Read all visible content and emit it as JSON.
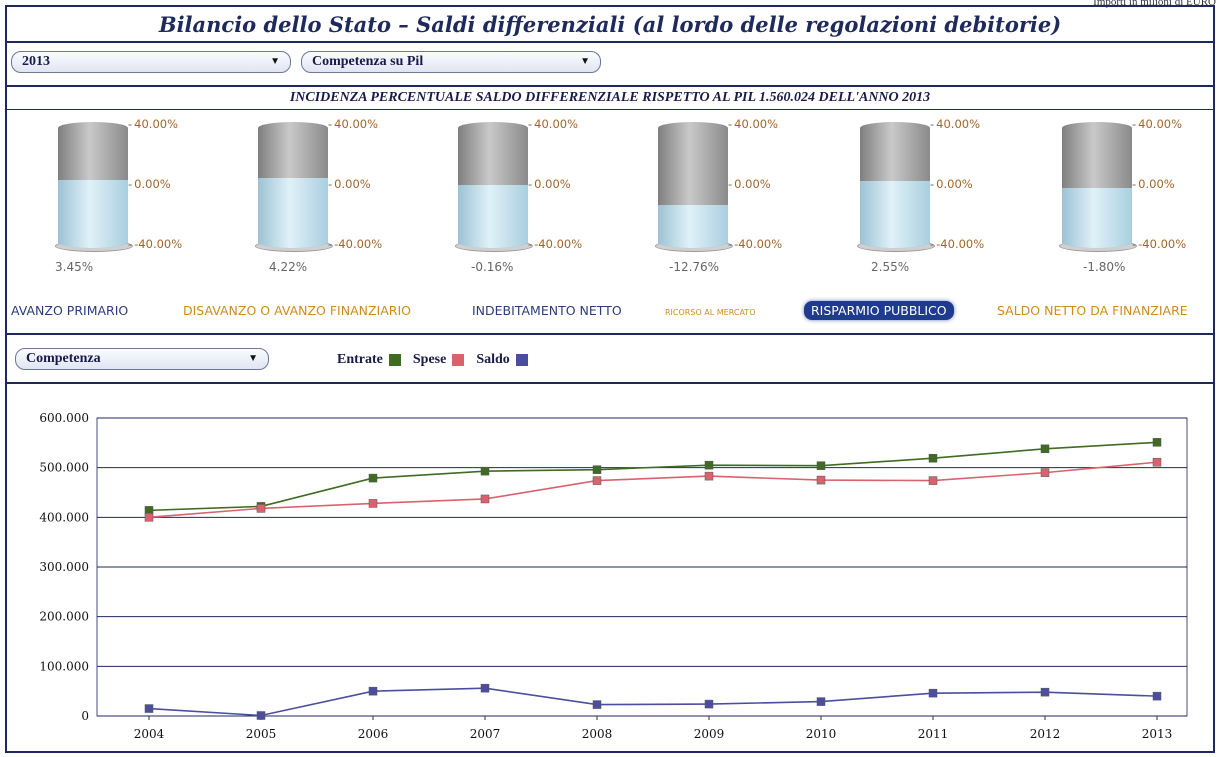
{
  "corner_note": "Importi in milioni di EURO",
  "title": "Bilancio dello Stato – Saldi differenziali (al lordo delle regolazioni debitorie)",
  "selectors": {
    "year": "2013",
    "measure": "Competenza su Pil",
    "mode": "Competenza"
  },
  "subtitle": "INCIDENZA PERCENTUALE SALDO DIFFERENZIALE RISPETTO AL PIL 1.560.024 DELL'ANNO 2013",
  "gauges": {
    "ticks": [
      "40.00%",
      "0.00%",
      "-40.00%"
    ],
    "range": [
      -40,
      40
    ],
    "items": [
      {
        "value_label": "3.45%",
        "value": 3.45
      },
      {
        "value_label": "4.22%",
        "value": 4.22
      },
      {
        "value_label": "-0.16%",
        "value": -0.16
      },
      {
        "value_label": "-12.76%",
        "value": -12.76
      },
      {
        "value_label": "2.55%",
        "value": 2.55
      },
      {
        "value_label": "-1.80%",
        "value": -1.8
      }
    ]
  },
  "links": [
    {
      "label": "AVANZO PRIMARIO"
    },
    {
      "label": "DISAVANZO O AVANZO FINANZIARIO"
    },
    {
      "label": "INDEBITAMENTO NETTO"
    },
    {
      "label": "RICORSO AL MERCATO"
    },
    {
      "label": "RISPARMIO PUBBLICO"
    },
    {
      "label": "SALDO NETTO DA FINANZIARE"
    }
  ],
  "legend": {
    "entrate": "Entrate",
    "spese": "Spese",
    "saldo": "Saldo"
  },
  "colors": {
    "entrate": "#3f6b22",
    "spese": "#d9626d",
    "saldo": "#4b4e9e",
    "navy": "#1f2a5c"
  },
  "chart_data": {
    "type": "line",
    "x": [
      "2004",
      "2005",
      "2006",
      "2007",
      "2008",
      "2009",
      "2010",
      "2011",
      "2012",
      "2013"
    ],
    "ylim": [
      0,
      600000
    ],
    "yticks": [
      "0",
      "100.000",
      "200.000",
      "300.000",
      "400.000",
      "500.000",
      "600.000"
    ],
    "series": [
      {
        "name": "Entrate",
        "values": [
          414000,
          422000,
          479000,
          493000,
          496000,
          505000,
          504000,
          519000,
          538000,
          551000
        ]
      },
      {
        "name": "Spese",
        "values": [
          400000,
          418000,
          428000,
          437000,
          474000,
          483000,
          475000,
          474000,
          490000,
          511000
        ]
      },
      {
        "name": "Saldo",
        "values": [
          15000,
          1000,
          50000,
          56000,
          23000,
          24000,
          29000,
          46000,
          48000,
          40000
        ]
      }
    ]
  }
}
